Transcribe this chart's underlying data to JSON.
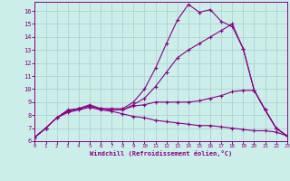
{
  "xlabel": "Windchill (Refroidissement éolien,°C)",
  "bg_color": "#cceee8",
  "line_color": "#880088",
  "grid_color": "#aacccc",
  "xlim": [
    0,
    23
  ],
  "ylim": [
    6,
    16.7
  ],
  "yticks": [
    6,
    7,
    8,
    9,
    10,
    11,
    12,
    13,
    14,
    15,
    16
  ],
  "xticks": [
    0,
    1,
    2,
    3,
    4,
    5,
    6,
    7,
    8,
    9,
    10,
    11,
    12,
    13,
    14,
    15,
    16,
    17,
    18,
    19,
    20,
    21,
    22,
    23
  ],
  "lines": [
    {
      "x": [
        0,
        1,
        2,
        3,
        4,
        5,
        6,
        7,
        8,
        9,
        10,
        11,
        12,
        13,
        14,
        15,
        16,
        17,
        18,
        19,
        20,
        21,
        22,
        23
      ],
      "y": [
        6.3,
        7.0,
        7.8,
        8.4,
        8.5,
        8.8,
        8.5,
        8.5,
        8.5,
        9.0,
        10.0,
        11.6,
        13.5,
        15.3,
        16.5,
        15.9,
        16.1,
        15.2,
        14.8,
        13.1,
        9.9,
        8.4,
        7.0,
        6.4
      ]
    },
    {
      "x": [
        0,
        1,
        2,
        3,
        4,
        5,
        6,
        7,
        8,
        9,
        10,
        11,
        12,
        13,
        14,
        15,
        16,
        17,
        18,
        19,
        20,
        21,
        22,
        23
      ],
      "y": [
        6.3,
        7.0,
        7.8,
        8.3,
        8.5,
        8.7,
        8.5,
        8.4,
        8.4,
        8.8,
        9.3,
        10.2,
        11.3,
        12.4,
        13.0,
        13.5,
        14.0,
        14.5,
        15.0,
        13.1,
        9.9,
        8.4,
        7.0,
        6.4
      ]
    },
    {
      "x": [
        0,
        1,
        2,
        3,
        4,
        5,
        6,
        7,
        8,
        9,
        10,
        11,
        12,
        13,
        14,
        15,
        16,
        17,
        18,
        19,
        20,
        21,
        22,
        23
      ],
      "y": [
        6.3,
        7.0,
        7.8,
        8.3,
        8.5,
        8.7,
        8.5,
        8.4,
        8.4,
        8.7,
        8.8,
        9.0,
        9.0,
        9.0,
        9.0,
        9.1,
        9.3,
        9.5,
        9.8,
        9.9,
        9.9,
        8.4,
        7.0,
        6.4
      ]
    },
    {
      "x": [
        0,
        1,
        2,
        3,
        4,
        5,
        6,
        7,
        8,
        9,
        10,
        11,
        12,
        13,
        14,
        15,
        16,
        17,
        18,
        19,
        20,
        21,
        22,
        23
      ],
      "y": [
        6.3,
        7.0,
        7.8,
        8.2,
        8.4,
        8.6,
        8.4,
        8.3,
        8.1,
        7.9,
        7.8,
        7.6,
        7.5,
        7.4,
        7.3,
        7.2,
        7.2,
        7.1,
        7.0,
        6.9,
        6.8,
        6.8,
        6.7,
        6.4
      ]
    }
  ]
}
